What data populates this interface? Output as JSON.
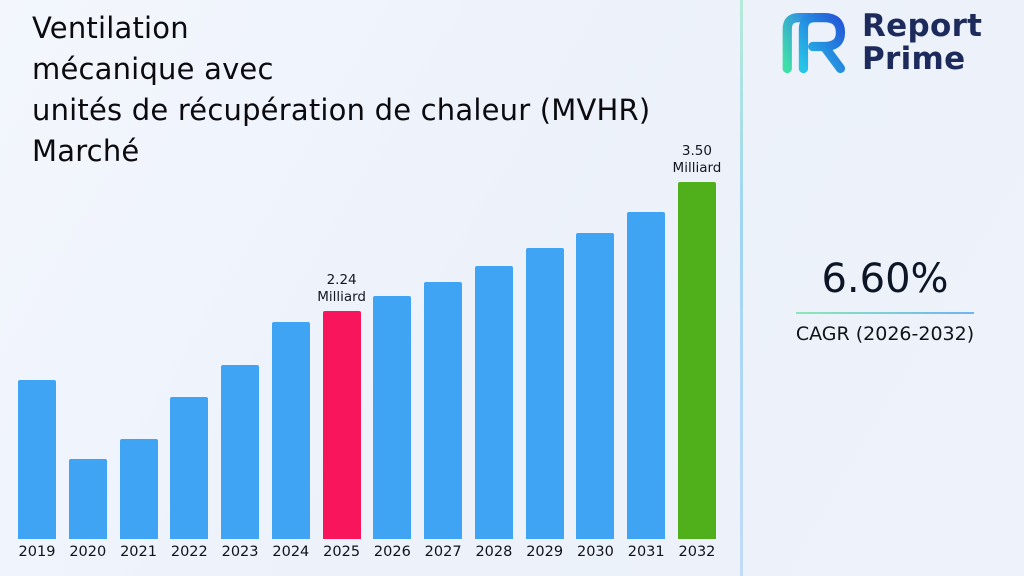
{
  "title": {
    "line1": "Ventilation",
    "line2": "mécanique avec",
    "line3": "unités de récupération de chaleur (MVHR) Marché"
  },
  "logo": {
    "name": "Report Prime",
    "line1": "Report",
    "line2": "Prime",
    "icon": "report-prime-logo",
    "text_color": "#1d2b5c",
    "gradient_start": "#3fe0a8",
    "gradient_end": "#2f7ff0"
  },
  "stats": {
    "cagr_value": "6.60%",
    "cagr_label": "CAGR (2026-2032)"
  },
  "chart_data": {
    "type": "bar",
    "title": "Ventilation mécanique avec unités de récupération de chaleur (MVHR) Marché",
    "xlabel": "",
    "ylabel": "Milliard",
    "unit": "Milliard",
    "grid": false,
    "legend": false,
    "ylim": [
      0,
      3.8
    ],
    "categories": [
      "2019",
      "2020",
      "2021",
      "2022",
      "2023",
      "2024",
      "2025",
      "2026",
      "2027",
      "2028",
      "2029",
      "2030",
      "2031",
      "2032"
    ],
    "values": [
      1.56,
      0.78,
      0.98,
      1.39,
      1.71,
      2.13,
      2.24,
      2.38,
      2.52,
      2.68,
      2.85,
      3.0,
      3.21,
      3.5
    ],
    "bar_color": "#3ea4f3",
    "highlights": [
      {
        "year": "2025",
        "value": 2.24,
        "label_lines": [
          "2.24",
          "Milliard"
        ],
        "color": "#f8155c"
      },
      {
        "year": "2032",
        "value": 3.5,
        "label_lines": [
          "3.50",
          "Milliard"
        ],
        "color": "#4fb01b"
      }
    ]
  }
}
